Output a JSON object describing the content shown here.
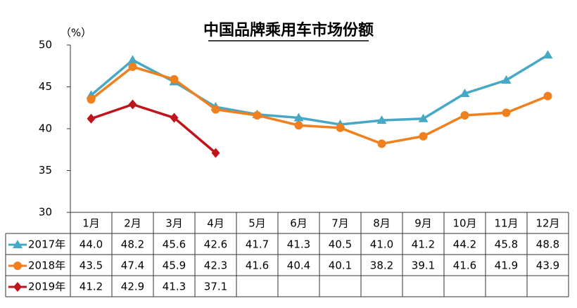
{
  "chart_data": {
    "type": "line",
    "title": "中国品牌乘用车市场份额",
    "y_label": "（%）",
    "categories": [
      "1月",
      "2月",
      "3月",
      "4月",
      "5月",
      "6月",
      "7月",
      "8月",
      "9月",
      "10月",
      "11月",
      "12月"
    ],
    "series": [
      {
        "name": "2017年",
        "color": "#45a8c4",
        "marker": "triangle",
        "values": [
          44.0,
          48.2,
          45.6,
          42.6,
          41.7,
          41.3,
          40.5,
          41.0,
          41.2,
          44.2,
          45.8,
          48.8
        ],
        "value_labels": [
          "44.0",
          "48.2",
          "45.6",
          "42.6",
          "41.7",
          "41.3",
          "40.5",
          "41.0",
          "41.2",
          "44.2",
          "45.8",
          "48.8"
        ]
      },
      {
        "name": "2018年",
        "color": "#f07f1e",
        "marker": "circle",
        "values": [
          43.5,
          47.4,
          45.9,
          42.3,
          41.6,
          40.4,
          40.1,
          38.2,
          39.1,
          41.6,
          41.9,
          43.9
        ],
        "value_labels": [
          "43.5",
          "47.4",
          "45.9",
          "42.3",
          "41.6",
          "40.4",
          "40.1",
          "38.2",
          "39.1",
          "41.6",
          "41.9",
          "43.9"
        ]
      },
      {
        "name": "2019年",
        "color": "#c0141c",
        "marker": "diamond",
        "values": [
          41.2,
          42.9,
          41.3,
          37.1,
          null,
          null,
          null,
          null,
          null,
          null,
          null,
          null
        ],
        "value_labels": [
          "41.2",
          "42.9",
          "41.3",
          "37.1",
          null,
          null,
          null,
          null,
          null,
          null,
          null,
          null
        ]
      }
    ],
    "ylim": [
      30,
      50
    ],
    "yticks": [
      30,
      35,
      40,
      45,
      50
    ],
    "grid": false
  }
}
